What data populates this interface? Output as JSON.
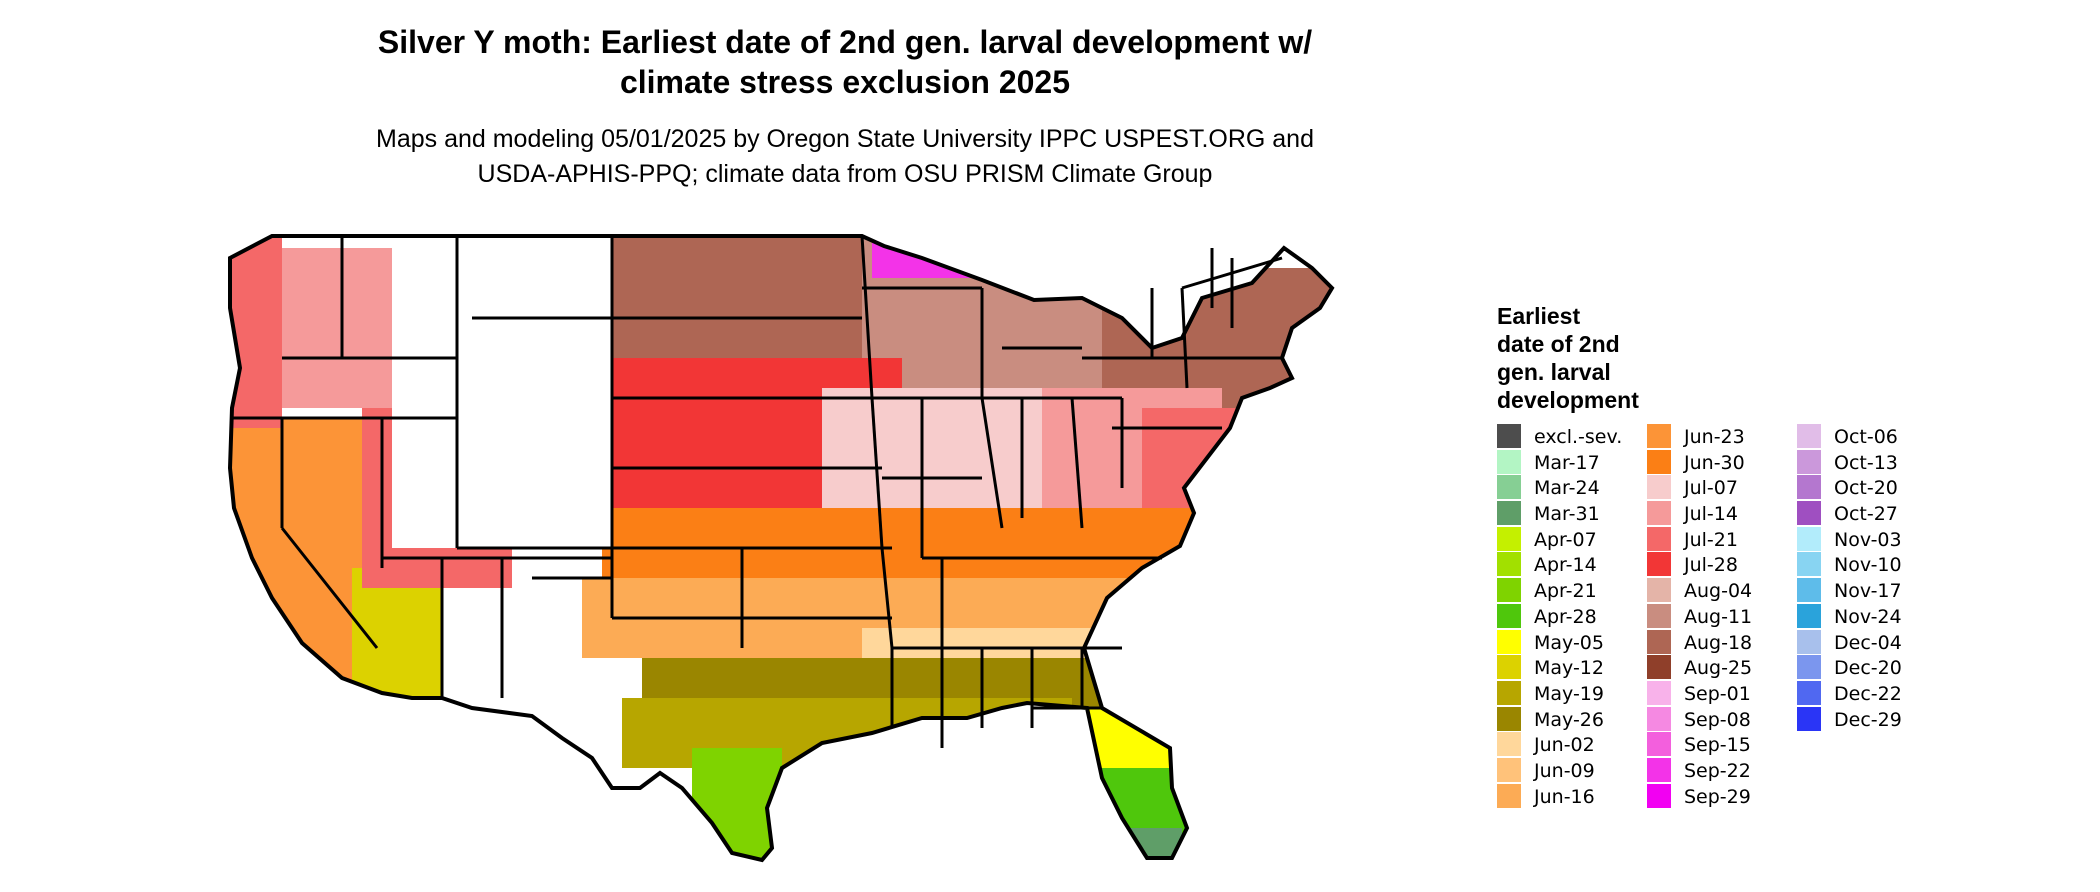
{
  "title_line1": "Silver Y moth: Earliest date of 2nd gen. larval development w/",
  "title_line2": "climate stress exclusion 2025",
  "subtitle_line1": "Maps and modeling 05/01/2025 by Oregon State University IPPC USPEST.ORG and",
  "subtitle_line2": "USDA-APHIS-PPQ; climate data from OSU PRISM Climate Group",
  "legend": {
    "title_lines": [
      "Earliest",
      "date of 2nd",
      "gen. larval",
      "development"
    ],
    "columns": [
      [
        {
          "label": "excl.-sev.",
          "color": "#4d4d4d"
        },
        {
          "label": "Mar-17",
          "color": "#b3f5c4"
        },
        {
          "label": "Mar-24",
          "color": "#86cf94"
        },
        {
          "label": "Mar-31",
          "color": "#5f9e68"
        },
        {
          "label": "Apr-07",
          "color": "#c4f000"
        },
        {
          "label": "Apr-14",
          "color": "#a2e000"
        },
        {
          "label": "Apr-21",
          "color": "#7fd300"
        },
        {
          "label": "Apr-28",
          "color": "#4fc70c"
        },
        {
          "label": "May-05",
          "color": "#ffff00"
        },
        {
          "label": "May-12",
          "color": "#dcd200"
        },
        {
          "label": "May-19",
          "color": "#b7a600"
        },
        {
          "label": "May-26",
          "color": "#9a8600"
        },
        {
          "label": "Jun-02",
          "color": "#ffd79b"
        },
        {
          "label": "Jun-09",
          "color": "#ffc27a"
        },
        {
          "label": "Jun-16",
          "color": "#fcab55"
        }
      ],
      [
        {
          "label": "Jun-23",
          "color": "#fc9437"
        },
        {
          "label": "Jun-30",
          "color": "#fb7f15"
        },
        {
          "label": "Jul-07",
          "color": "#f7cccc"
        },
        {
          "label": "Jul-14",
          "color": "#f59a9a"
        },
        {
          "label": "Jul-21",
          "color": "#f46868"
        },
        {
          "label": "Jul-28",
          "color": "#f23636"
        },
        {
          "label": "Aug-04",
          "color": "#e4b4a8"
        },
        {
          "label": "Aug-11",
          "color": "#c98d80"
        },
        {
          "label": "Aug-18",
          "color": "#ae6654"
        },
        {
          "label": "Aug-25",
          "color": "#8f3f2a"
        },
        {
          "label": "Sep-01",
          "color": "#f8b2ea"
        },
        {
          "label": "Sep-08",
          "color": "#f589e2"
        },
        {
          "label": "Sep-15",
          "color": "#f35fdd"
        },
        {
          "label": "Sep-22",
          "color": "#f333e8"
        },
        {
          "label": "Sep-29",
          "color": "#f200f2"
        }
      ],
      [
        {
          "label": "Oct-06",
          "color": "#e1bde8"
        },
        {
          "label": "Oct-13",
          "color": "#cb98db"
        },
        {
          "label": "Oct-20",
          "color": "#b477cf"
        },
        {
          "label": "Oct-27",
          "color": "#9f4fc1"
        },
        {
          "label": "Nov-03",
          "color": "#b2ecfb"
        },
        {
          "label": "Nov-10",
          "color": "#88d4f2"
        },
        {
          "label": "Nov-17",
          "color": "#5ebcea"
        },
        {
          "label": "Nov-24",
          "color": "#2aa3db"
        },
        {
          "label": "Dec-04",
          "color": "#a8c0ec"
        },
        {
          "label": "Dec-20",
          "color": "#7b96ee"
        },
        {
          "label": "Dec-22",
          "color": "#5068f1"
        },
        {
          "label": "Dec-29",
          "color": "#2a35f6"
        }
      ]
    ]
  },
  "map": {
    "colors": {
      "outline": "#000000",
      "unsuitable": "#ffffff",
      "pnw_coast": "#f46868",
      "nw_interior": "#f59a9a",
      "northern_plains": "#ae6654",
      "upper_midwest": "#c98d80",
      "northwoods": "#f333e8",
      "central_plains": "#f23636",
      "midwest": "#f7cccc",
      "ohio_valley": "#f59a9a",
      "northeast": "#ae6654",
      "mid_atlantic": "#f46868",
      "south_band": "#fb7f15",
      "south_central": "#fcab55",
      "southeast": "#ffd79b",
      "gulf": "#9a8600",
      "gulf_coast": "#b7a600",
      "texas_south": "#7fd300",
      "florida": "#ffff00",
      "florida_south": "#4fc70c",
      "keys": "#5f9e68",
      "california": "#fc9437",
      "desert": "#dcd200",
      "great_basin": "#f46868"
    }
  }
}
